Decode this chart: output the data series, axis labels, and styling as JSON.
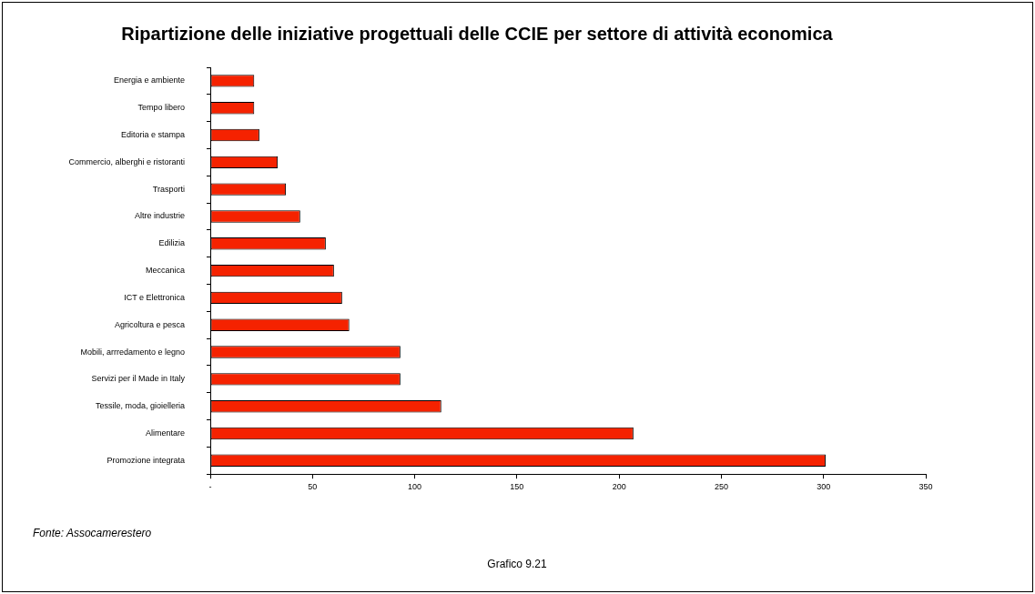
{
  "chart_data": {
    "type": "bar",
    "orientation": "horizontal",
    "title": "Ripartizione delle iniziative progettuali delle CCIE per settore di attività economica",
    "categories": [
      "Energia e ambiente",
      "Tempo libero",
      "Editoria e stampa",
      "Commercio, alberghi e ristoranti",
      "Trasporti",
      "Altre industrie",
      "Edilizia",
      "Meccanica",
      "ICT e Elettronica",
      "Agricoltura e pesca",
      "Mobili, arrredamento e legno",
      "Servizi per il Made in Italy",
      "Tessile, moda, gioielleria",
      "Alimentare",
      "Promozione integrata"
    ],
    "values": [
      21.5,
      21.5,
      24,
      33,
      37,
      44,
      56.5,
      60.5,
      64.5,
      68,
      93,
      93,
      113,
      207,
      301
    ],
    "color": "#f52200",
    "xlim": [
      0,
      350
    ],
    "xticks": [
      {
        "value": 0,
        "label": "-"
      },
      50,
      100,
      150,
      200,
      250,
      300,
      350
    ],
    "grid": false,
    "legend": false,
    "annotations": [
      "Fonte: Assocamerestero",
      "Grafico 9.21"
    ]
  }
}
